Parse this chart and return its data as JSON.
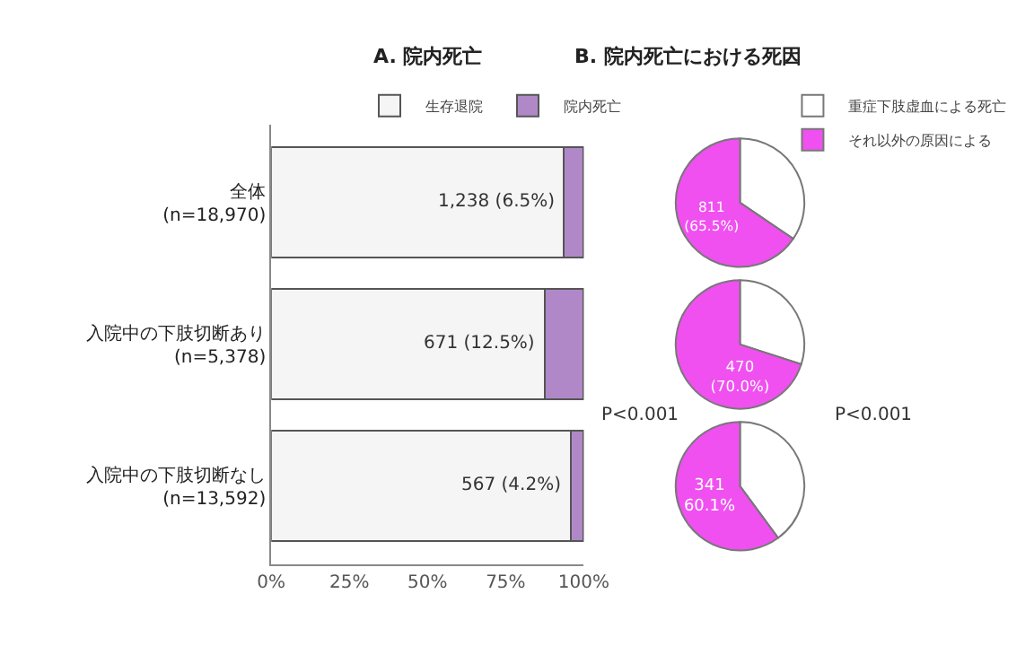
{
  "chart_data": [
    {
      "type": "bar",
      "title": "A. 院内死亡",
      "orientation": "horizontal",
      "stacked": true,
      "categories": [
        "全体\n(n=18,970)",
        "入院中の下肢切断あり\n(n=5,378)",
        "入院中の下肢切断なし\n(n=13,592)"
      ],
      "series": [
        {
          "name": "生存退院",
          "color": "#f5f5f5",
          "values": [
            93.5,
            87.5,
            95.8
          ]
        },
        {
          "name": "院内死亡",
          "color": "#b088c8",
          "values": [
            6.5,
            12.5,
            4.2
          ],
          "value_labels": [
            "1,238 (6.5%)",
            "671 (12.5%)",
            "567 (4.2%)"
          ]
        }
      ],
      "xlim": [
        0,
        100
      ],
      "xticks": [
        {
          "value": 0,
          "label": "0%"
        },
        {
          "value": 25,
          "label": "25%"
        },
        {
          "value": 50,
          "label": "50%"
        },
        {
          "value": 75,
          "label": "75%"
        },
        {
          "value": 100,
          "label": "100%"
        }
      ],
      "legend": "top",
      "annotations": [
        "P<0.001"
      ]
    },
    {
      "type": "pie",
      "title": "B. 院内死亡における死因",
      "categories": [
        "重症下肢虚血による死亡",
        "それ以外の原因による"
      ],
      "values": [
        34.5,
        65.5
      ],
      "colors": [
        "#ffffff",
        "#f050f0"
      ],
      "value_labels": [
        null,
        "811\n(65.5%)"
      ],
      "legend": "top right"
    },
    {
      "type": "pie",
      "categories": [
        null,
        null
      ],
      "values": [
        30.0,
        70.0
      ],
      "colors": [
        "#ffffff",
        "#f050f0"
      ],
      "value_labels": [
        null,
        "470\n(70.0%)"
      ]
    },
    {
      "type": "pie",
      "categories": [
        null,
        null
      ],
      "values": [
        39.9,
        60.1
      ],
      "colors": [
        "#ffffff",
        "#f050f0"
      ],
      "value_labels": [
        null,
        "341\n60.1%"
      ],
      "annotations": [
        "P<0.001"
      ]
    }
  ]
}
